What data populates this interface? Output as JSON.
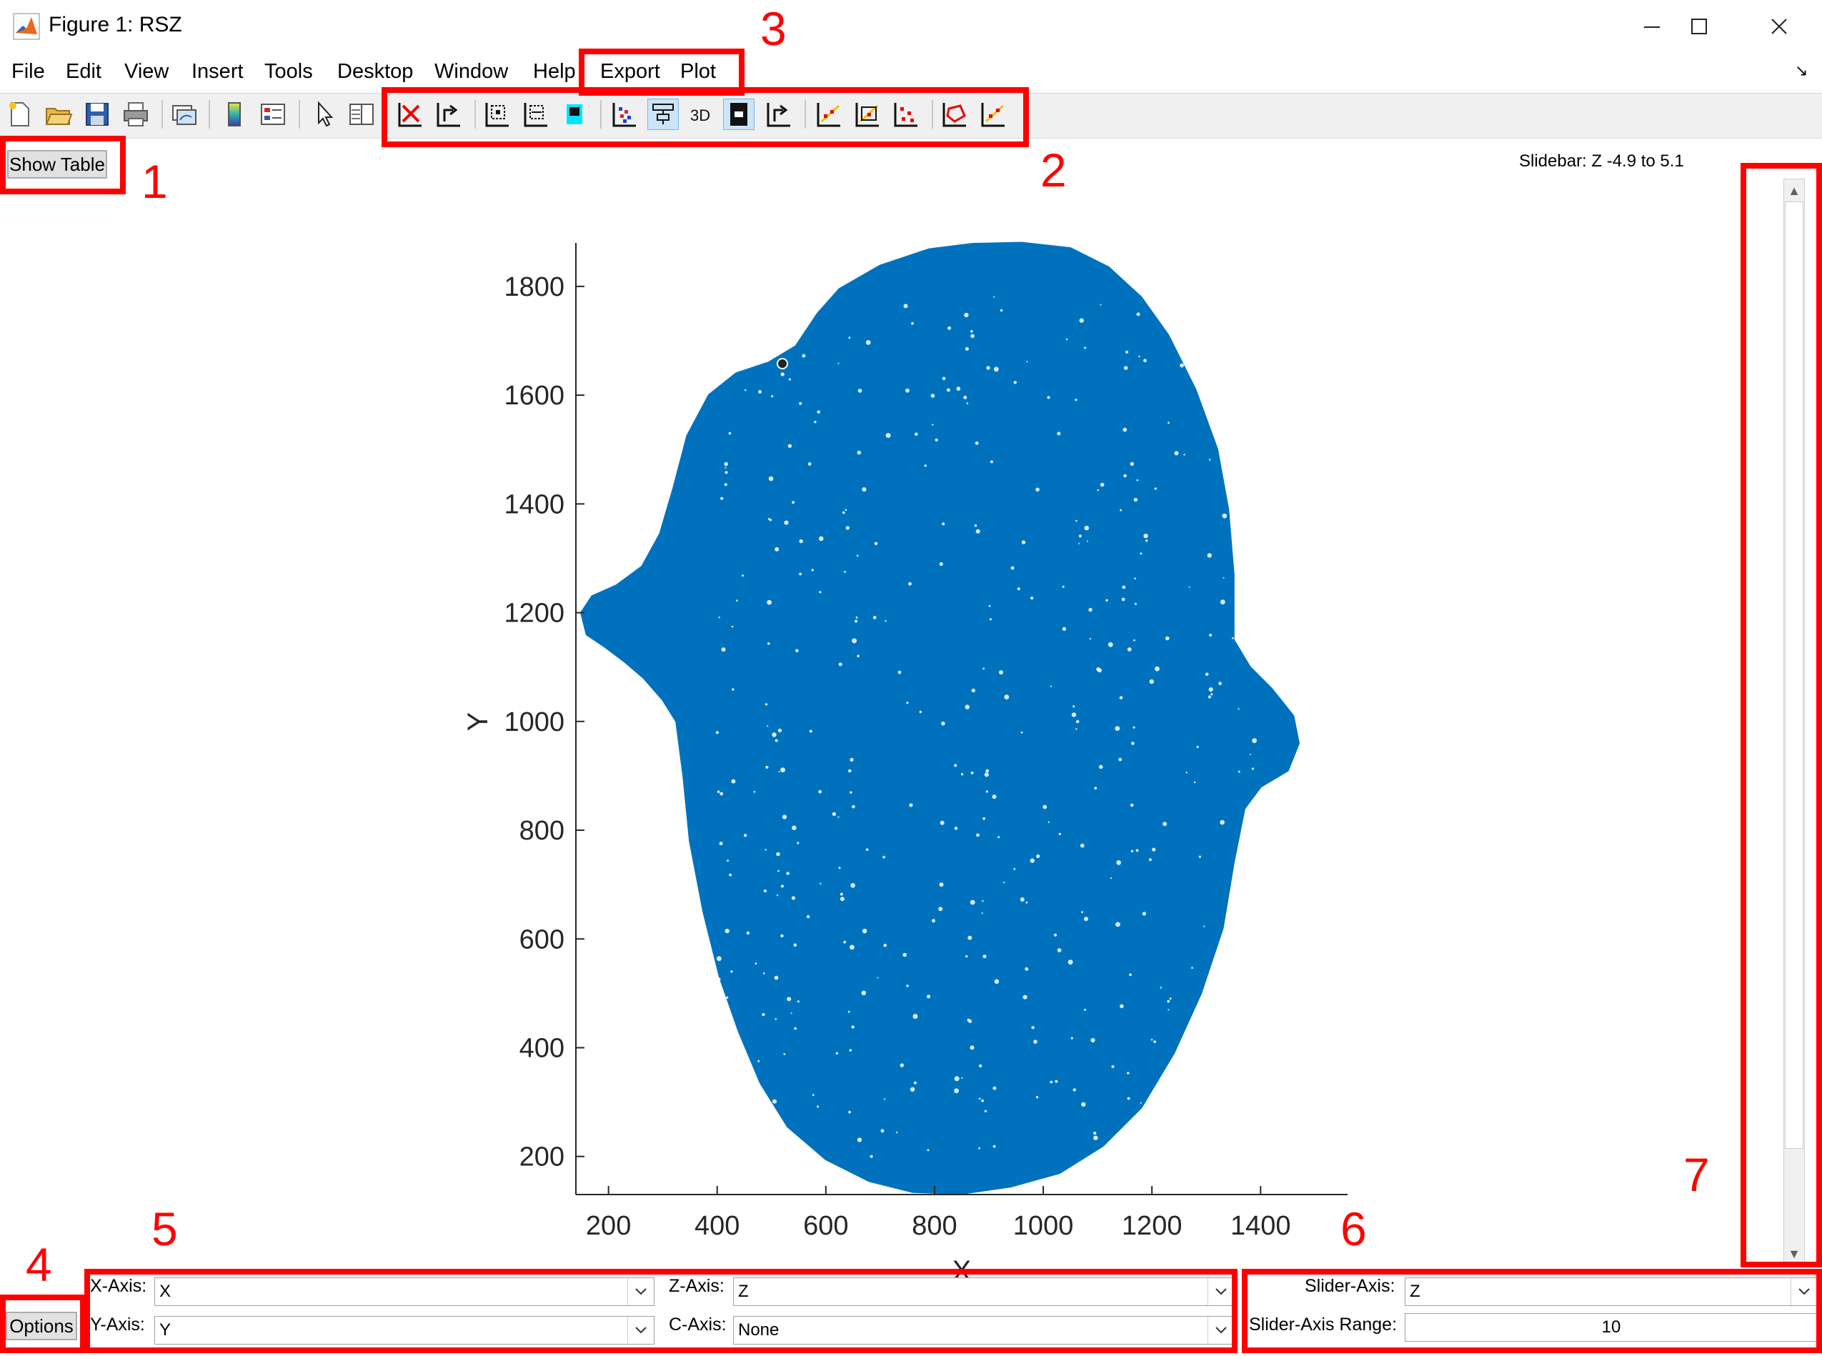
{
  "window": {
    "title": "Figure 1: RSZ",
    "minimize": "—",
    "maximize": "☐",
    "close": "✕"
  },
  "menu": [
    "File",
    "Edit",
    "View",
    "Insert",
    "Tools",
    "Desktop",
    "Window",
    "Help",
    "Export",
    "Plot"
  ],
  "toolbar_icons": [
    "new-figure-icon",
    "open-file-icon",
    "save-icon",
    "print-icon",
    "link-plot-icon",
    "colorbar-icon",
    "legend-icon",
    "pointer-icon",
    "property-inspector-icon",
    "delete-points-icon",
    "export-points-icon",
    "zoom-box-icon",
    "zoom-box-alt-icon",
    "color-toggle-icon",
    "scatter-colored-icon",
    "filter-icon",
    "3d-view-icon",
    "density-icon",
    "export-alt-icon",
    "fit-line-icon",
    "fit-line-box-icon",
    "scatter-red-icon",
    "polygon-select-icon",
    "line-select-icon"
  ],
  "show_table": "Show Table",
  "slidebar_text": "Slidebar: Z -4.9 to 5.1",
  "options_label": "Options",
  "annotations": [
    "1",
    "2",
    "3",
    "4",
    "5",
    "6",
    "7"
  ],
  "controls": {
    "x_axis_label": "X-Axis:",
    "x_axis_value": "X",
    "y_axis_label": "Y-Axis:",
    "y_axis_value": "Y",
    "z_axis_label": "Z-Axis:",
    "z_axis_value": "Z",
    "c_axis_label": "C-Axis:",
    "c_axis_value": "None",
    "slider_axis_label": "Slider-Axis:",
    "slider_axis_value": "Z",
    "slider_range_label": "Slider-Axis Range:",
    "slider_range_value": "10"
  },
  "chart_data": {
    "type": "scatter",
    "xlabel": "X",
    "ylabel": "Y",
    "xlim": [
      140,
      1560
    ],
    "ylim": [
      130,
      1880
    ],
    "xticks": [
      200,
      400,
      600,
      800,
      1000,
      1200,
      1400
    ],
    "yticks": [
      200,
      400,
      600,
      800,
      1000,
      1200,
      1400,
      1600,
      1800
    ],
    "color": "#0072bd",
    "outline": [
      [
        870,
        1878
      ],
      [
        960,
        1880
      ],
      [
        1050,
        1870
      ],
      [
        1120,
        1835
      ],
      [
        1180,
        1780
      ],
      [
        1230,
        1710
      ],
      [
        1280,
        1610
      ],
      [
        1320,
        1500
      ],
      [
        1340,
        1390
      ],
      [
        1350,
        1270
      ],
      [
        1350,
        1150
      ],
      [
        1380,
        1100
      ],
      [
        1420,
        1060
      ],
      [
        1460,
        1010
      ],
      [
        1470,
        960
      ],
      [
        1450,
        910
      ],
      [
        1400,
        880
      ],
      [
        1370,
        840
      ],
      [
        1350,
        740
      ],
      [
        1330,
        620
      ],
      [
        1290,
        500
      ],
      [
        1240,
        390
      ],
      [
        1180,
        290
      ],
      [
        1110,
        220
      ],
      [
        1030,
        170
      ],
      [
        940,
        145
      ],
      [
        850,
        132
      ],
      [
        760,
        135
      ],
      [
        680,
        155
      ],
      [
        600,
        195
      ],
      [
        530,
        255
      ],
      [
        480,
        335
      ],
      [
        440,
        430
      ],
      [
        405,
        530
      ],
      [
        375,
        650
      ],
      [
        350,
        780
      ],
      [
        338,
        900
      ],
      [
        325,
        1000
      ],
      [
        300,
        1040
      ],
      [
        265,
        1080
      ],
      [
        230,
        1110
      ],
      [
        190,
        1140
      ],
      [
        160,
        1160
      ],
      [
        150,
        1200
      ],
      [
        170,
        1230
      ],
      [
        215,
        1250
      ],
      [
        262,
        1285
      ],
      [
        295,
        1345
      ],
      [
        320,
        1430
      ],
      [
        345,
        1525
      ],
      [
        385,
        1600
      ],
      [
        435,
        1640
      ],
      [
        495,
        1660
      ],
      [
        545,
        1690
      ],
      [
        585,
        1750
      ],
      [
        625,
        1795
      ],
      [
        700,
        1838
      ],
      [
        790,
        1868
      ]
    ],
    "highlight_point": [
      520,
      1658
    ]
  }
}
